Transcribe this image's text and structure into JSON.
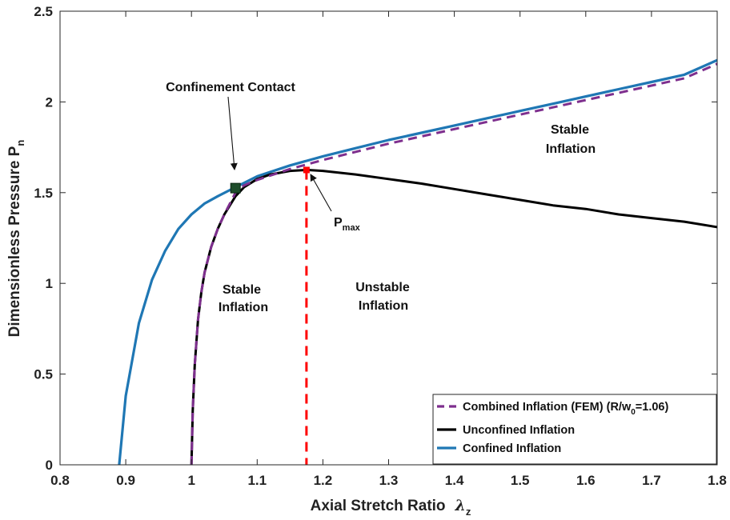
{
  "chart_data": {
    "type": "line",
    "xlabel": "Axial Stretch Ratio",
    "xlabel_symbol": "λ",
    "xlabel_sub": "z",
    "ylabel": "Dimensionless Pressure  P",
    "ylabel_sub": "n",
    "xlim": [
      0.8,
      1.8
    ],
    "ylim": [
      0,
      2.5
    ],
    "xticks": [
      "0.8",
      "0.9",
      "1",
      "1.1",
      "1.2",
      "1.3",
      "1.4",
      "1.5",
      "1.6",
      "1.7",
      "1.8"
    ],
    "yticks": [
      "0",
      "0.5",
      "1",
      "1.5",
      "2",
      "2.5"
    ],
    "grid": false,
    "legend_position": "bottom-right",
    "colors": {
      "confined": "#1f77b4",
      "unconfined": "#000000",
      "combined": "#7e2f8e",
      "pmax_line": "#ff0000",
      "contact_marker": "#1e4d2b"
    },
    "series": [
      {
        "name": "Confined Inflation",
        "key": "confined",
        "x": [
          0.89,
          0.9,
          0.92,
          0.94,
          0.96,
          0.98,
          1.0,
          1.02,
          1.04,
          1.067,
          1.1,
          1.15,
          1.2,
          1.25,
          1.3,
          1.35,
          1.4,
          1.45,
          1.5,
          1.55,
          1.6,
          1.65,
          1.7,
          1.75,
          1.8
        ],
        "y": [
          0.0,
          0.38,
          0.78,
          1.02,
          1.18,
          1.3,
          1.38,
          1.44,
          1.48,
          1.53,
          1.59,
          1.65,
          1.7,
          1.745,
          1.79,
          1.83,
          1.87,
          1.91,
          1.95,
          1.99,
          2.03,
          2.07,
          2.11,
          2.15,
          2.23
        ]
      },
      {
        "name": "Unconfined Inflation",
        "key": "unconfined",
        "x": [
          1.0,
          1.002,
          1.005,
          1.01,
          1.015,
          1.02,
          1.03,
          1.04,
          1.05,
          1.067,
          1.08,
          1.1,
          1.12,
          1.15,
          1.175,
          1.2,
          1.25,
          1.3,
          1.35,
          1.4,
          1.45,
          1.5,
          1.55,
          1.6,
          1.65,
          1.7,
          1.75,
          1.8
        ],
        "y": [
          0.0,
          0.3,
          0.55,
          0.8,
          0.95,
          1.06,
          1.2,
          1.3,
          1.38,
          1.48,
          1.53,
          1.575,
          1.6,
          1.62,
          1.625,
          1.62,
          1.6,
          1.575,
          1.55,
          1.52,
          1.49,
          1.46,
          1.43,
          1.41,
          1.38,
          1.36,
          1.34,
          1.31
        ]
      },
      {
        "name": "Combined Inflation (FEM) (R/w",
        "name_sub": "0",
        "name_tail": "=1.06)",
        "key": "combined",
        "x": [
          1.0,
          1.002,
          1.005,
          1.01,
          1.015,
          1.02,
          1.03,
          1.04,
          1.05,
          1.067,
          1.08,
          1.1,
          1.15,
          1.2,
          1.25,
          1.3,
          1.35,
          1.4,
          1.45,
          1.5,
          1.55,
          1.6,
          1.65,
          1.7,
          1.75,
          1.8
        ],
        "y": [
          0.0,
          0.3,
          0.55,
          0.8,
          0.95,
          1.06,
          1.2,
          1.3,
          1.38,
          1.5,
          1.54,
          1.57,
          1.63,
          1.68,
          1.725,
          1.77,
          1.81,
          1.85,
          1.89,
          1.93,
          1.97,
          2.01,
          2.05,
          2.09,
          2.13,
          2.21
        ]
      }
    ],
    "pmax_line": {
      "x": 1.175,
      "y_top": 1.625
    },
    "contact_point": {
      "x": 1.067,
      "y": 1.525
    },
    "annotations": {
      "confinement_contact": "Confinement Contact",
      "pmax": "P",
      "pmax_sub": "max",
      "stable_left_1": "Stable",
      "stable_left_2": "Inflation",
      "unstable_1": "Unstable",
      "unstable_2": "Inflation",
      "stable_right_1": "Stable",
      "stable_right_2": "Inflation"
    }
  }
}
